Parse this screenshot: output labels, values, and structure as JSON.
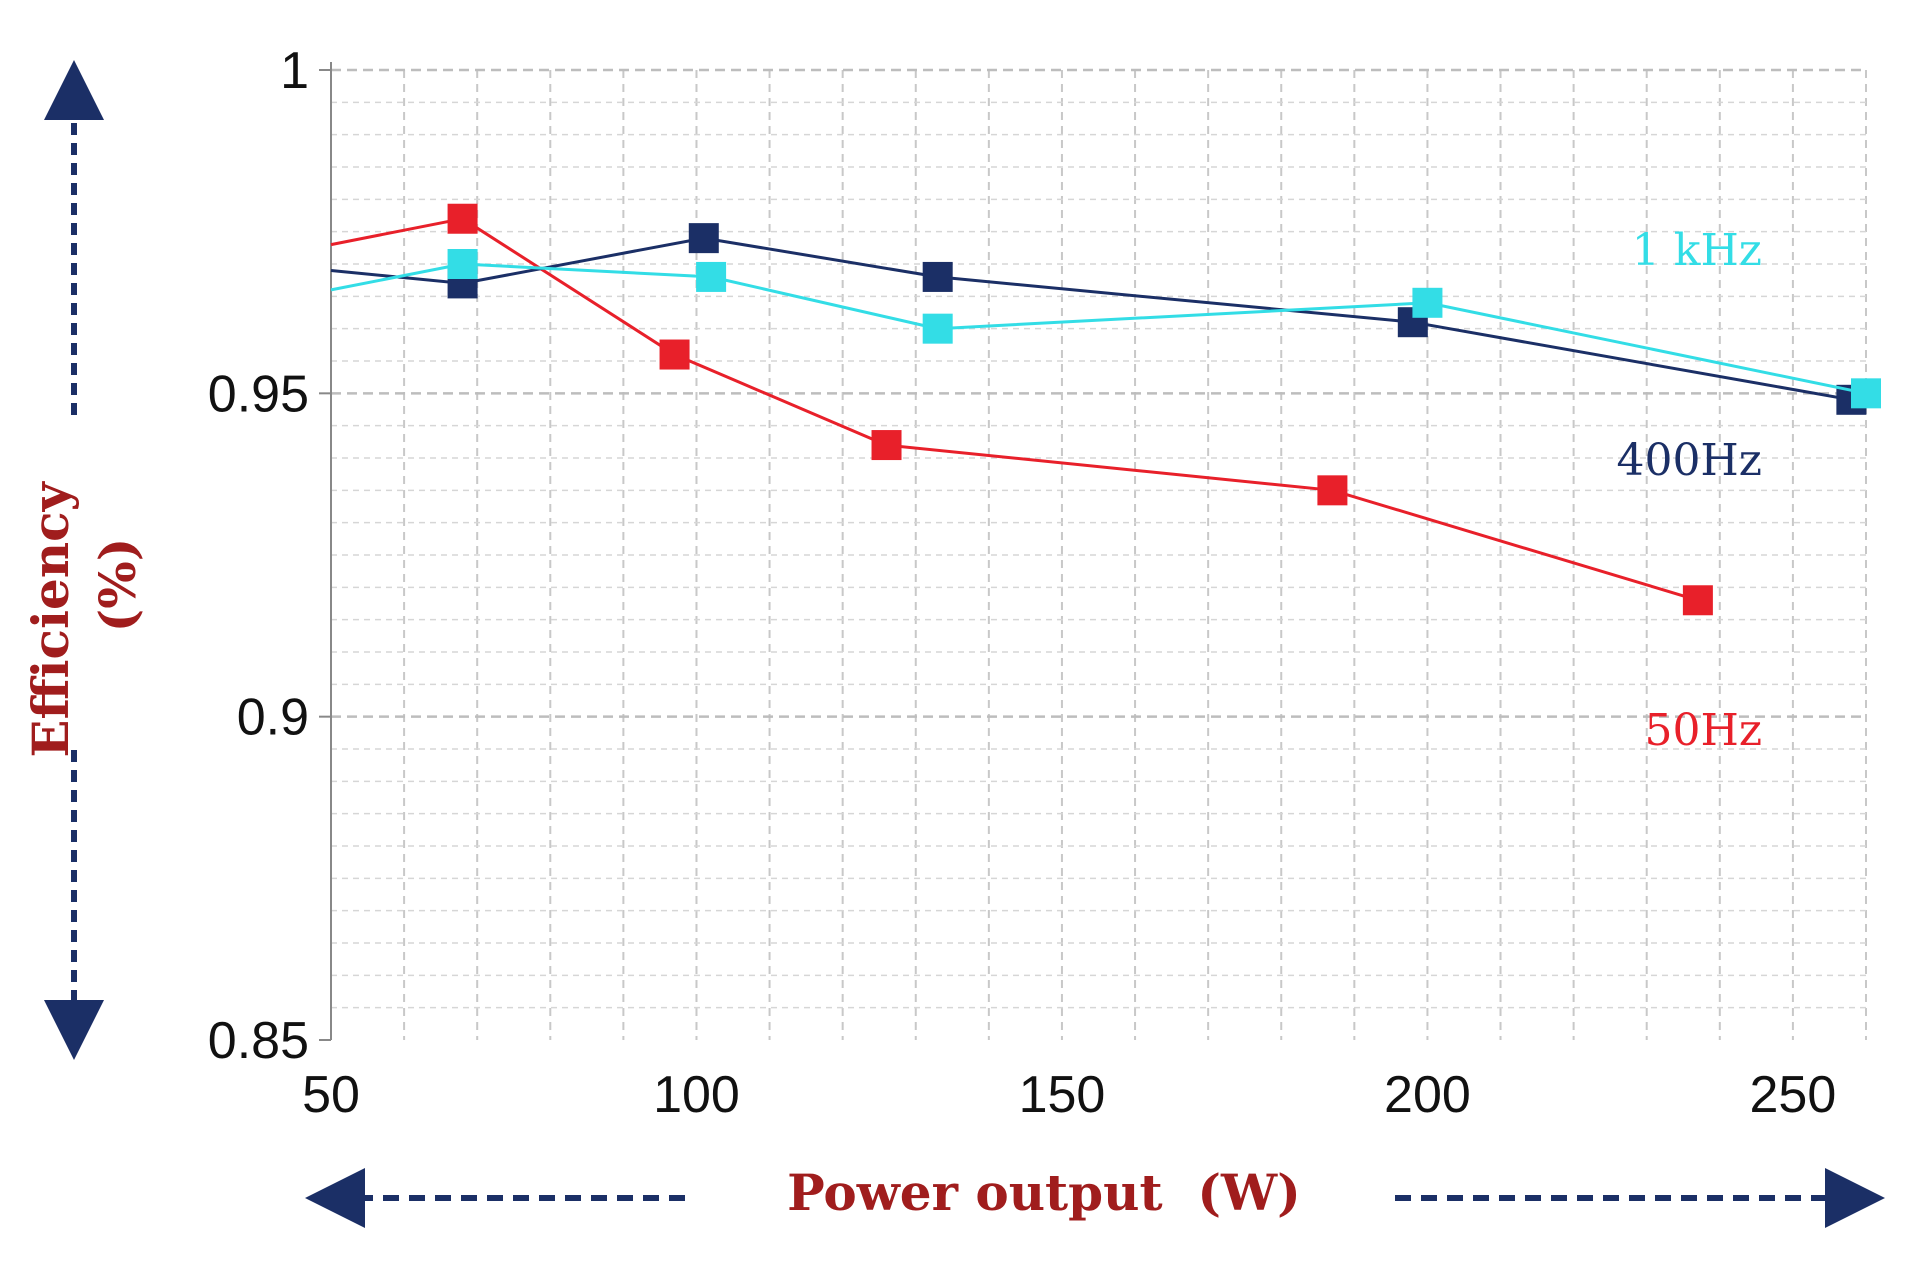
{
  "chart_data": {
    "type": "line",
    "xlabel": "Power output  (W)",
    "ylabel": "Efficiency",
    "ylabel_unit": "(%)",
    "xlim": [
      50,
      260
    ],
    "ylim": [
      0.85,
      1.0
    ],
    "x_ticks": [
      "50",
      "100",
      "150",
      "200",
      "250"
    ],
    "y_ticks": [
      "0.85",
      "0.9",
      "0.95",
      "1"
    ],
    "grid": true,
    "series": [
      {
        "name": "1 kHz",
        "color": "#33dde6",
        "points": [
          [
            50,
            0.966
          ],
          [
            68,
            0.97
          ],
          [
            102,
            0.968
          ],
          [
            133,
            0.96
          ],
          [
            200,
            0.964
          ],
          [
            260,
            0.95
          ]
        ]
      },
      {
        "name": "400Hz",
        "color": "#1b2f66",
        "points": [
          [
            50,
            0.969
          ],
          [
            68,
            0.967
          ],
          [
            101,
            0.974
          ],
          [
            133,
            0.968
          ],
          [
            198,
            0.961
          ],
          [
            258,
            0.949
          ]
        ]
      },
      {
        "name": "50Hz",
        "color": "#e8202a",
        "points": [
          [
            50,
            0.973
          ],
          [
            68,
            0.977
          ],
          [
            97,
            0.956
          ],
          [
            126,
            0.942
          ],
          [
            187,
            0.935
          ],
          [
            237,
            0.918
          ]
        ]
      }
    ]
  }
}
